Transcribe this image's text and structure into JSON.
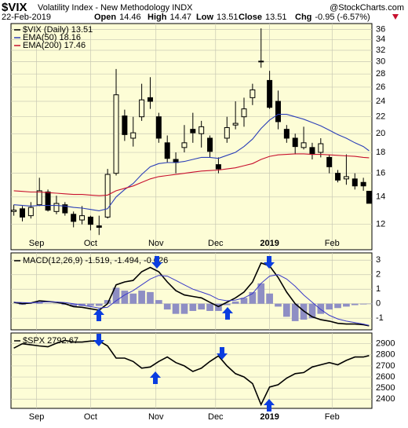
{
  "header": {
    "symbol": "$VIX",
    "name": "Volatility Index - New Methodology INDX",
    "source": "@StockCharts.com",
    "date": "22-Feb-2019",
    "quote": [
      {
        "label": "Open",
        "value": "14.46"
      },
      {
        "label": "High",
        "value": "14.47"
      },
      {
        "label": "Low",
        "value": "13.51"
      },
      {
        "label": "Close",
        "value": "13.51"
      },
      {
        "label": "Chg",
        "value": "-0.95 (-6.57%)"
      }
    ]
  },
  "chart_data": [
    {
      "type": "candlestick",
      "name": "$VIX (Daily) 13.51",
      "color": "#000000",
      "log_scale": true,
      "grid": true,
      "x": [
        0,
        3,
        6,
        9,
        12,
        15,
        18,
        21,
        24,
        27,
        30,
        33,
        36,
        39,
        42,
        45,
        48,
        51,
        54,
        57,
        60,
        63,
        66,
        69,
        72,
        75,
        78,
        81,
        84,
        87,
        90,
        93,
        96,
        99,
        102,
        105,
        108,
        111,
        114,
        117,
        120,
        123,
        125
      ],
      "open": [
        12.9,
        13.1,
        12.6,
        13.4,
        14.4,
        12.9,
        13.4,
        12.7,
        12.3,
        12.5,
        11.9,
        12.5,
        16.0,
        22.1,
        19.5,
        22.0,
        24.5,
        22.0,
        19.0,
        17.3,
        18.5,
        20.5,
        20.0,
        19.5,
        16.8,
        19.5,
        21.0,
        22.0,
        24.5,
        30.0,
        27.0,
        24.0,
        20.5,
        19.5,
        18.5,
        18.5,
        18.0,
        17.5,
        16.0,
        15.5,
        15.5,
        15.2,
        14.46
      ],
      "high": [
        13.4,
        13.3,
        13.6,
        15.6,
        14.6,
        14.1,
        13.6,
        12.9,
        13.3,
        12.6,
        12.6,
        16.4,
        28.8,
        22.9,
        22.0,
        26.5,
        27.5,
        22.5,
        19.8,
        18.0,
        21.0,
        22.5,
        21.5,
        19.8,
        17.5,
        22.0,
        24.0,
        24.5,
        26.5,
        36.2,
        28.5,
        25.5,
        21.0,
        20.0,
        20.8,
        19.0,
        19.5,
        17.8,
        16.3,
        17.8,
        16.0,
        15.6,
        14.47
      ],
      "low": [
        12.6,
        12.2,
        12.4,
        13.3,
        12.9,
        12.7,
        12.6,
        11.8,
        12.0,
        11.6,
        11.3,
        12.4,
        15.8,
        19.2,
        18.6,
        21.5,
        23.0,
        19.0,
        17.0,
        16.0,
        18.0,
        19.0,
        18.5,
        17.5,
        16.0,
        19.0,
        20.5,
        20.8,
        23.5,
        29.0,
        23.0,
        20.5,
        19.0,
        17.8,
        18.3,
        17.3,
        17.5,
        16.0,
        15.2,
        15.0,
        14.6,
        14.5,
        13.51
      ],
      "close": [
        13.0,
        12.5,
        13.2,
        14.5,
        13.0,
        13.5,
        12.8,
        12.2,
        12.6,
        12.0,
        11.8,
        15.9,
        24.9,
        19.9,
        20.1,
        24.2,
        24.0,
        19.5,
        17.4,
        17.0,
        19.0,
        20.1,
        20.8,
        18.1,
        16.4,
        20.7,
        21.2,
        23.0,
        25.6,
        30.1,
        23.2,
        21.4,
        19.5,
        18.6,
        19.0,
        17.8,
        18.9,
        16.6,
        15.4,
        15.7,
        14.9,
        14.9,
        13.51
      ],
      "series": [
        {
          "name": "EMA(50) 18.16",
          "color": "#2b3fb8",
          "values": [
            13.4,
            13.35,
            13.3,
            13.35,
            13.35,
            13.35,
            13.3,
            13.2,
            13.15,
            13.05,
            12.95,
            13.1,
            14.0,
            14.6,
            15.1,
            15.9,
            16.6,
            16.9,
            17.0,
            17.0,
            17.1,
            17.3,
            17.5,
            17.5,
            17.4,
            17.7,
            18.0,
            18.6,
            19.4,
            20.6,
            21.6,
            22.3,
            22.3,
            22.0,
            21.7,
            21.3,
            20.9,
            20.4,
            19.9,
            19.5,
            19.0,
            18.6,
            18.16
          ]
        },
        {
          "name": "EMA(200) 17.46",
          "color": "#c8102e",
          "values": [
            14.5,
            14.45,
            14.4,
            14.4,
            14.35,
            14.3,
            14.25,
            14.2,
            14.2,
            14.15,
            14.1,
            14.15,
            14.5,
            14.7,
            14.9,
            15.2,
            15.5,
            15.7,
            15.8,
            15.9,
            16.0,
            16.1,
            16.2,
            16.25,
            16.3,
            16.4,
            16.5,
            16.7,
            16.9,
            17.3,
            17.6,
            17.75,
            17.8,
            17.85,
            17.85,
            17.8,
            17.8,
            17.75,
            17.7,
            17.65,
            17.6,
            17.5,
            17.46
          ]
        }
      ],
      "xlim": [
        -1,
        126
      ],
      "xticks": [
        {
          "value": 8,
          "label": "Sep"
        },
        {
          "value": 27,
          "label": "Oct"
        },
        {
          "value": 50,
          "label": "Nov"
        },
        {
          "value": 71,
          "label": "Dec"
        },
        {
          "value": 90,
          "label": "2019"
        },
        {
          "value": 112,
          "label": "Feb"
        }
      ],
      "ylim": [
        10.4,
        37.2
      ],
      "yticks": [
        12,
        14,
        16,
        18,
        20,
        22,
        24,
        26,
        28,
        30,
        32,
        34,
        36
      ]
    },
    {
      "type": "macd",
      "label": "MACD(12,26,9) -1.519, -1.494, -0.026",
      "grid": true,
      "x": [
        0,
        3,
        6,
        9,
        12,
        15,
        18,
        21,
        24,
        27,
        30,
        33,
        36,
        39,
        42,
        45,
        48,
        51,
        54,
        57,
        60,
        63,
        66,
        69,
        72,
        75,
        78,
        81,
        84,
        87,
        90,
        93,
        96,
        99,
        102,
        105,
        108,
        111,
        114,
        117,
        120,
        123,
        125
      ],
      "histogram": {
        "color": "#8e8ec4",
        "values": [
          0,
          -0.08,
          -0.01,
          0.1,
          0.02,
          -0.02,
          -0.08,
          -0.2,
          -0.15,
          -0.15,
          -0.15,
          0.25,
          1.1,
          0.9,
          0.7,
          0.9,
          0.8,
          0.25,
          -0.4,
          -0.7,
          -0.7,
          -0.5,
          -0.4,
          -0.5,
          -0.5,
          -0.1,
          0.15,
          0.4,
          0.8,
          1.4,
          0.7,
          -0.2,
          -0.9,
          -1.2,
          -1.1,
          -1.0,
          -0.7,
          -0.4,
          -0.3,
          -0.2,
          -0.1,
          -0.05,
          -0.026
        ]
      },
      "series": [
        {
          "color": "#000000",
          "values": [
            0.1,
            0,
            0.05,
            0.2,
            0.15,
            0.1,
            0.0,
            -0.2,
            -0.25,
            -0.35,
            -0.45,
            0.0,
            1.3,
            1.5,
            1.6,
            2.2,
            2.5,
            2.2,
            1.5,
            0.9,
            0.6,
            0.5,
            0.4,
            0.1,
            -0.2,
            0.1,
            0.4,
            0.8,
            1.5,
            2.8,
            2.6,
            1.8,
            0.8,
            0.0,
            -0.5,
            -0.9,
            -1.1,
            -1.2,
            -1.35,
            -1.4,
            -1.4,
            -1.45,
            -1.519
          ]
        },
        {
          "color": "#3a3ac8",
          "values": [
            0.1,
            0.08,
            0.06,
            0.1,
            0.13,
            0.12,
            0.08,
            0.0,
            -0.1,
            -0.2,
            -0.3,
            -0.25,
            0.2,
            0.6,
            0.9,
            1.3,
            1.7,
            1.95,
            1.9,
            1.6,
            1.3,
            1.0,
            0.8,
            0.6,
            0.3,
            0.2,
            0.25,
            0.4,
            0.7,
            1.4,
            1.9,
            2.0,
            1.7,
            1.2,
            0.6,
            0.1,
            -0.4,
            -0.8,
            -1.05,
            -1.2,
            -1.3,
            -1.4,
            -1.494
          ]
        }
      ],
      "xlim": [
        -1,
        126
      ],
      "ylim": [
        -1.8,
        3.5
      ],
      "yticks": [
        -1,
        0,
        1,
        2,
        3
      ]
    },
    {
      "type": "line",
      "label": "$SPX 2792.67",
      "color": "#000000",
      "grid": true,
      "x": [
        0,
        3,
        6,
        9,
        12,
        15,
        18,
        21,
        24,
        27,
        30,
        33,
        36,
        39,
        42,
        45,
        48,
        51,
        54,
        57,
        60,
        63,
        66,
        69,
        72,
        75,
        78,
        81,
        84,
        87,
        90,
        93,
        96,
        99,
        102,
        105,
        108,
        111,
        114,
        117,
        120,
        123,
        125
      ],
      "values": [
        2860,
        2900,
        2890,
        2880,
        2872,
        2905,
        2930,
        2915,
        2915,
        2924,
        2925,
        2880,
        2770,
        2770,
        2740,
        2680,
        2690,
        2740,
        2780,
        2730,
        2700,
        2650,
        2680,
        2740,
        2790,
        2700,
        2630,
        2600,
        2540,
        2351,
        2510,
        2530,
        2590,
        2630,
        2640,
        2690,
        2710,
        2730,
        2710,
        2750,
        2780,
        2780,
        2792.67
      ],
      "xlim": [
        -1,
        126
      ],
      "xticks": [
        {
          "value": 8,
          "label": "Sep"
        },
        {
          "value": 27,
          "label": "Oct"
        },
        {
          "value": 50,
          "label": "Nov"
        },
        {
          "value": 71,
          "label": "Dec"
        },
        {
          "value": 90,
          "label": "2019"
        },
        {
          "value": 112,
          "label": "Feb"
        }
      ],
      "ylim": [
        2317,
        2997
      ],
      "yticks": [
        2400,
        2500,
        2600,
        2700,
        2800,
        2900
      ]
    }
  ]
}
